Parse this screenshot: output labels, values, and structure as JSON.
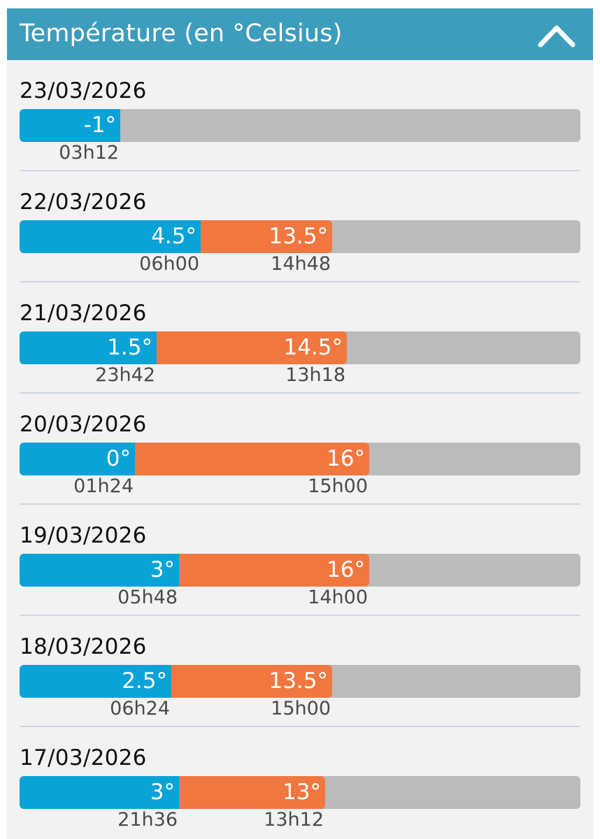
{
  "header": {
    "title": "Température (en °Celsius)",
    "toggle_icon": "chevron-up-icon",
    "background": "#3d9dbd"
  },
  "colors": {
    "min": "#0aa3d8",
    "max": "#f07840",
    "track": "#bbbbbb"
  },
  "scale_note_unit": "°C",
  "days": [
    {
      "date": "23/03/2026",
      "min_label": "-1°",
      "min_time": "03h12",
      "min_value": -1,
      "max_label": "",
      "max_time": "",
      "max_value": null
    },
    {
      "date": "22/03/2026",
      "min_label": "4.5°",
      "min_time": "06h00",
      "min_value": 4.5,
      "max_label": "13.5°",
      "max_time": "14h48",
      "max_value": 13.5
    },
    {
      "date": "21/03/2026",
      "min_label": "1.5°",
      "min_time": "23h42",
      "min_value": 1.5,
      "max_label": "14.5°",
      "max_time": "13h18",
      "max_value": 14.5
    },
    {
      "date": "20/03/2026",
      "min_label": "0°",
      "min_time": "01h24",
      "min_value": 0,
      "max_label": "16°",
      "max_time": "15h00",
      "max_value": 16
    },
    {
      "date": "19/03/2026",
      "min_label": "3°",
      "min_time": "05h48",
      "min_value": 3,
      "max_label": "16°",
      "max_time": "14h00",
      "max_value": 16
    },
    {
      "date": "18/03/2026",
      "min_label": "2.5°",
      "min_time": "06h24",
      "min_value": 2.5,
      "max_label": "13.5°",
      "max_time": "15h00",
      "max_value": 13.5
    },
    {
      "date": "17/03/2026",
      "min_label": "3°",
      "min_time": "21h36",
      "min_value": 3,
      "max_label": "13°",
      "max_time": "13h12",
      "max_value": 13
    }
  ]
}
